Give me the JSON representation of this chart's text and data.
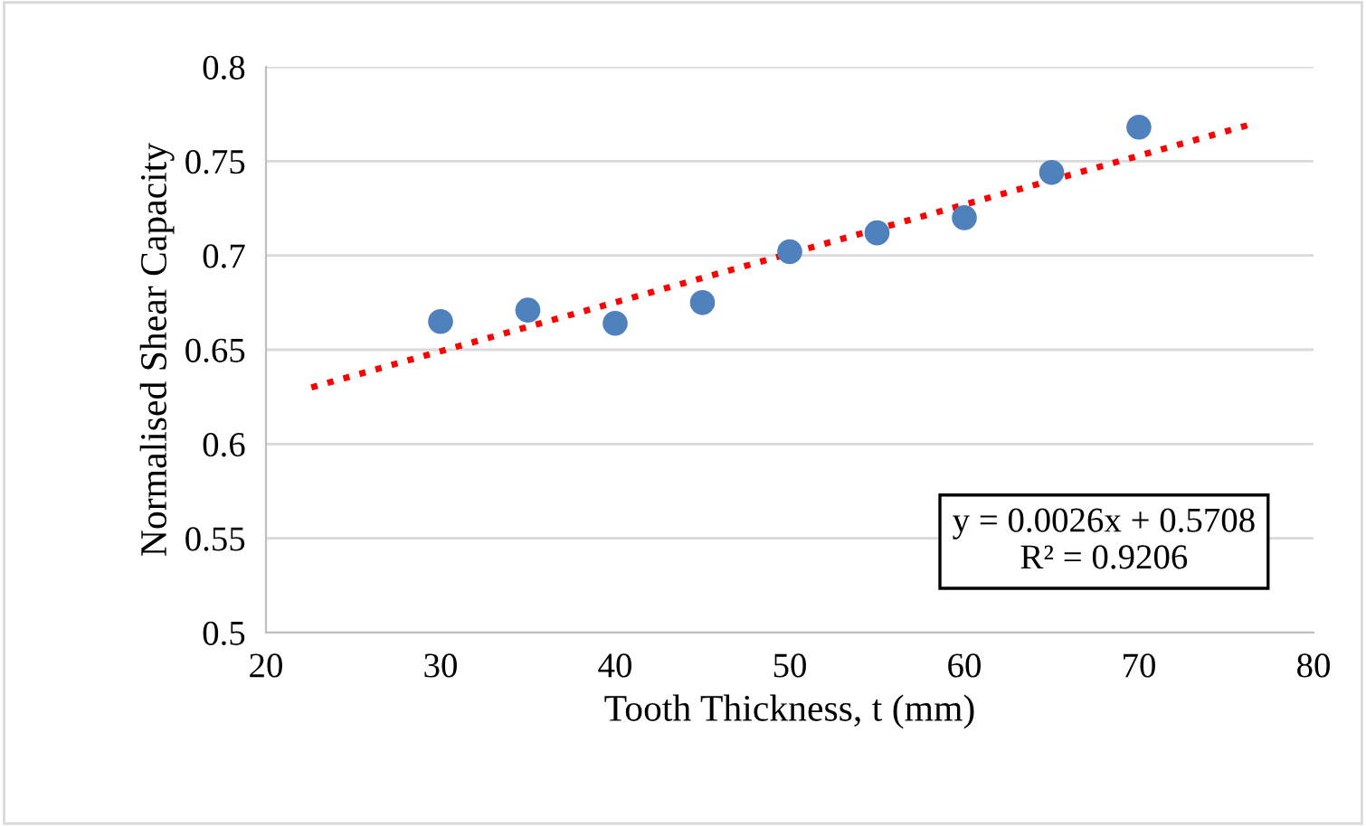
{
  "chart_data": {
    "type": "scatter",
    "xlabel": "Tooth Thickness, t (mm)",
    "ylabel": "Normalised Shear Capacity",
    "x": [
      30,
      35,
      40,
      45,
      50,
      55,
      60,
      65,
      70
    ],
    "series": [
      {
        "color": "#4f81bd",
        "marker": "circle",
        "values": [
          0.665,
          0.671,
          0.664,
          0.675,
          0.702,
          0.712,
          0.72,
          0.744,
          0.768
        ]
      },
      {
        "type": "line",
        "color": "#ff0000",
        "line_style": "dotted",
        "marker": "none",
        "x": [
          22.6,
          76.6
        ],
        "values": [
          0.63,
          0.77
        ]
      }
    ],
    "annotations": [
      "y = 0.0026x + 0.5708\nR² = 0.9206"
    ],
    "xlim": [
      20,
      80
    ],
    "xticks": [
      20,
      30,
      40,
      50,
      60,
      70,
      80
    ],
    "ylim": [
      0.5,
      0.8
    ],
    "yticks": [
      0.5,
      0.55,
      0.6,
      0.65,
      0.7,
      0.75,
      0.8
    ],
    "grid": "y",
    "legend": false
  }
}
